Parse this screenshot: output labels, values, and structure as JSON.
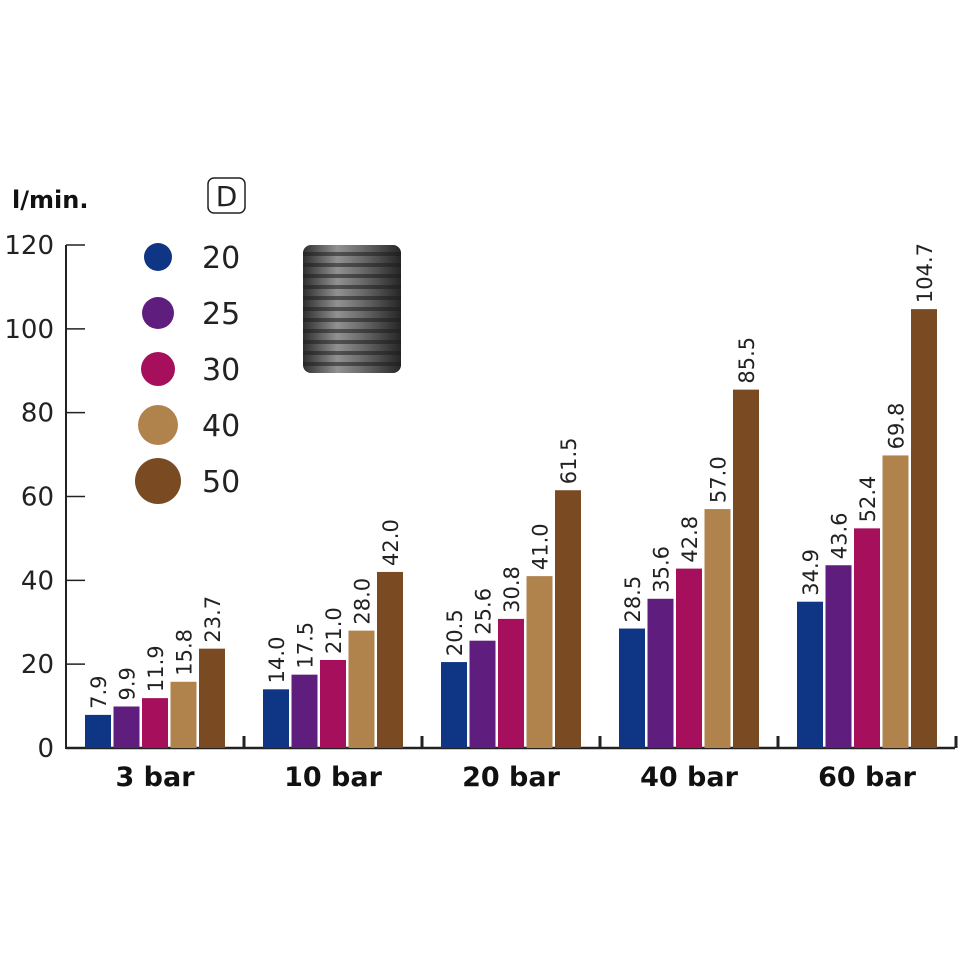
{
  "chart_data": {
    "type": "bar",
    "ylabel": "l/min.",
    "legend_title": "D",
    "categories": [
      "3 bar",
      "10 bar",
      "20 bar",
      "40 bar",
      "60 bar"
    ],
    "series": [
      {
        "name": "20",
        "color": "#0f3585",
        "values": [
          7.9,
          14.0,
          20.5,
          28.5,
          34.9
        ]
      },
      {
        "name": "25",
        "color": "#5f1e7e",
        "values": [
          9.9,
          17.5,
          25.6,
          35.6,
          43.6
        ]
      },
      {
        "name": "30",
        "color": "#a50f5c",
        "values": [
          11.9,
          21.0,
          30.8,
          42.8,
          52.4
        ]
      },
      {
        "name": "40",
        "color": "#b0834c",
        "values": [
          15.8,
          28.0,
          41.0,
          57.0,
          69.8
        ]
      },
      {
        "name": "50",
        "color": "#7a4b23",
        "values": [
          23.7,
          42.0,
          61.5,
          85.5,
          104.7
        ]
      }
    ],
    "value_labels": [
      [
        "7.9",
        "14.0",
        "20.5",
        "28.5",
        "34.9"
      ],
      [
        "9.9",
        "17.5",
        "25.6",
        "35.6",
        "43.6"
      ],
      [
        "11.9",
        "21.0",
        "30.8",
        "42.8",
        "52.4"
      ],
      [
        "15.8",
        "28.0",
        "41.0",
        "57.0",
        "69.8"
      ],
      [
        "23.7",
        "42.0",
        "61.5",
        "85.5",
        "104.7"
      ]
    ],
    "yticks": [
      "0",
      "20",
      "40",
      "60",
      "80",
      "100",
      "120"
    ],
    "ylim": [
      0,
      120
    ],
    "grid": false,
    "legend_position": "top-left"
  }
}
